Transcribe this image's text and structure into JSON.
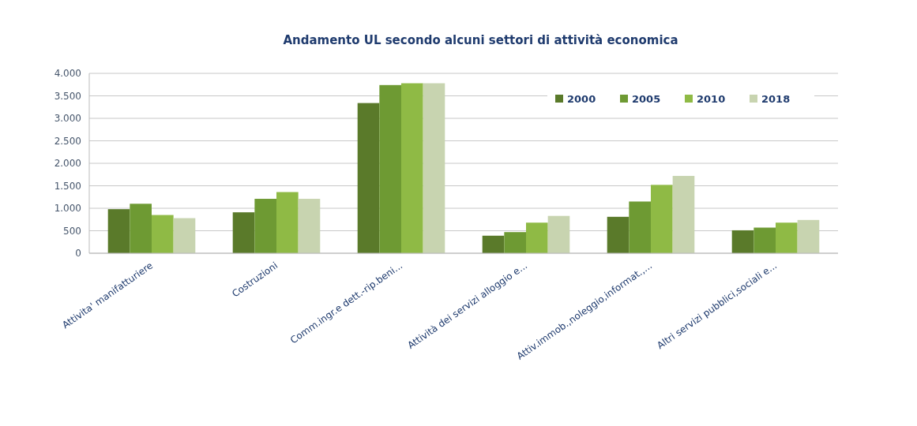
{
  "chart_data": {
    "type": "bar",
    "title": "Andamento UL secondo alcuni settori di attività economica",
    "categories": [
      "Attivita' manifatturiere",
      "Costruzioni",
      "Comm.ingr.e dett.-rip.beni...",
      "Attività dei servizi alloggio e...",
      "Attiv.immob.,noleggio,informat.,...",
      "Altri servizi pubblici,sociali e..."
    ],
    "series": [
      {
        "name": "2000",
        "color": "#5a7a2a",
        "values": [
          980,
          910,
          3340,
          390,
          810,
          510
        ]
      },
      {
        "name": "2005",
        "color": "#6e9a33",
        "values": [
          1100,
          1210,
          3740,
          470,
          1150,
          570
        ]
      },
      {
        "name": "2010",
        "color": "#8fba45",
        "values": [
          850,
          1360,
          3780,
          680,
          1520,
          680
        ]
      },
      {
        "name": "2018",
        "color": "#c8d4b0",
        "values": [
          780,
          1210,
          3780,
          830,
          1720,
          740
        ]
      }
    ],
    "ylim": [
      0,
      4000
    ],
    "yticks": [
      {
        "value": 0,
        "label": "0"
      },
      {
        "value": 500,
        "label": "500"
      },
      {
        "value": 1000,
        "label": "1.000"
      },
      {
        "value": 1500,
        "label": "1.500"
      },
      {
        "value": 2000,
        "label": "2.000"
      },
      {
        "value": 2500,
        "label": "2.500"
      },
      {
        "value": 3000,
        "label": "3.000"
      },
      {
        "value": 3500,
        "label": "3.500"
      },
      {
        "value": 4000,
        "label": "4.000"
      }
    ],
    "grid": "y",
    "legend": "top right"
  }
}
